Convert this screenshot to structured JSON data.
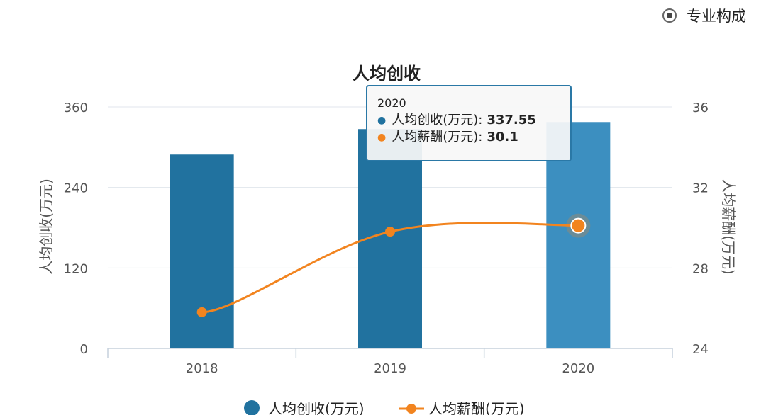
{
  "top_option": {
    "label": "专业构成",
    "selected": true
  },
  "chart_data": {
    "type": "bar",
    "title": "人均创收",
    "categories": [
      "2018",
      "2019",
      "2020"
    ],
    "series": [
      {
        "name": "人均创收(万元)",
        "type": "bar",
        "axis": "left",
        "color": "#21729f",
        "highlight_color": "#3c8fc0",
        "values": [
          289,
          327,
          337.55
        ]
      },
      {
        "name": "人均薪酬(万元)",
        "type": "line",
        "axis": "right",
        "color": "#f2841f",
        "values": [
          25.8,
          29.8,
          30.1
        ]
      }
    ],
    "y_left": {
      "label": "人均创收(万元)",
      "range": [
        0,
        360
      ],
      "ticks": [
        "0",
        "120",
        "240",
        "360"
      ]
    },
    "y_right": {
      "label": "人均薪酬(万元)",
      "range": [
        24,
        36
      ],
      "ticks": [
        "24",
        "28",
        "32",
        "36"
      ]
    },
    "grid": true,
    "legend_position": "bottom",
    "highlighted_category": "2020"
  },
  "tooltip": {
    "title": "2020",
    "rows": [
      {
        "label": "人均创收(万元):",
        "value": "337.55",
        "color": "#21729f"
      },
      {
        "label": "人均薪酬(万元):",
        "value": "30.1",
        "color": "#f2841f"
      }
    ]
  }
}
